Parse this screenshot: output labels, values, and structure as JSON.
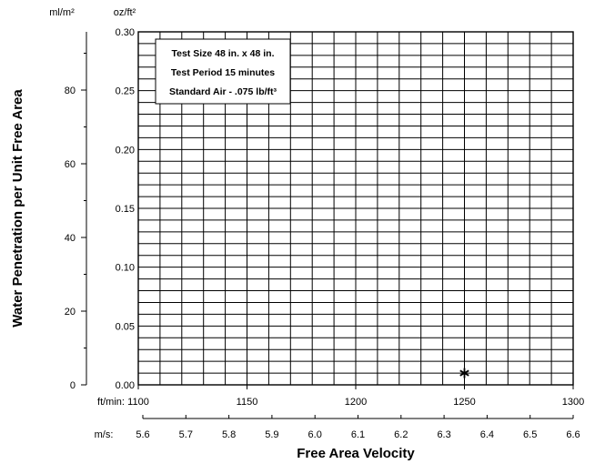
{
  "chart_data": {
    "type": "scatter",
    "x_label": "Free Area Velocity",
    "y_label": "Water Penetration per Unit Free Area",
    "x_primary": {
      "unit": "ft/min:",
      "range": [
        1100,
        1300
      ],
      "ticks": [
        "1100",
        "1150",
        "1200",
        "1250",
        "1300"
      ]
    },
    "x_secondary": {
      "unit": "m/s:",
      "ticks": [
        "5.6",
        "5.7",
        "5.8",
        "5.9",
        "6.0",
        "6.1",
        "6.2",
        "6.3",
        "6.4",
        "6.5",
        "6.6"
      ]
    },
    "y_primary": {
      "unit": "oz/ft²",
      "range": [
        0,
        0.3
      ],
      "ticks": [
        "0.00",
        "0.05",
        "0.10",
        "0.15",
        "0.20",
        "0.25",
        "0.30"
      ]
    },
    "y_secondary": {
      "unit": "ml/m²",
      "ticks": [
        "0",
        "20",
        "40",
        "60",
        "80"
      ]
    },
    "legend": [
      "Test Size 48 in. x 48 in.",
      "Test Period 15 minutes",
      "Standard Air - .075 lb/ft³"
    ],
    "points": [
      {
        "x": 1250,
        "y": 0.01,
        "marker": "asterisk"
      }
    ],
    "grid": true
  }
}
